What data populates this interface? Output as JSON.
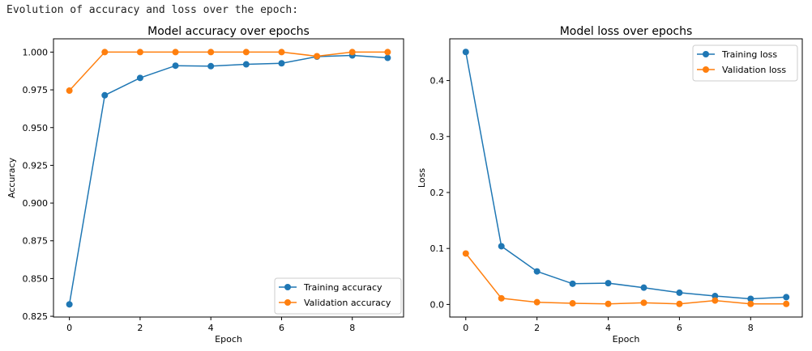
{
  "caption": "Evolution of accuracy and loss over the epoch:",
  "colors": {
    "training": "#1f77b4",
    "validation": "#ff7f0e"
  },
  "chart_data": [
    {
      "type": "line",
      "title": "Model accuracy over epochs",
      "xlabel": "Epoch",
      "ylabel": "Accuracy",
      "x": [
        0,
        1,
        2,
        3,
        4,
        5,
        6,
        7,
        8,
        9
      ],
      "xlim": [
        -0.45,
        9.45
      ],
      "ylim": [
        0.8245,
        1.0088
      ],
      "xticks": [
        0,
        2,
        4,
        6,
        8
      ],
      "xtick_labels": [
        "0",
        "2",
        "4",
        "6",
        "8"
      ],
      "yticks": [
        0.825,
        0.85,
        0.875,
        0.9,
        0.925,
        0.95,
        0.975,
        1.0
      ],
      "ytick_labels": [
        "0.825",
        "0.850",
        "0.875",
        "0.900",
        "0.925",
        "0.950",
        "0.975",
        "1.000"
      ],
      "legend_position": "lower-right",
      "series": [
        {
          "name": "Training accuracy",
          "values": [
            0.8329,
            0.9714,
            0.9829,
            0.991,
            0.9907,
            0.9919,
            0.9926,
            0.997,
            0.9978,
            0.9962
          ]
        },
        {
          "name": "Validation accuracy",
          "values": [
            0.9745,
            1.0,
            1.0,
            1.0,
            1.0,
            1.0,
            1.0,
            0.9973,
            1.0,
            1.0
          ]
        }
      ]
    },
    {
      "type": "line",
      "title": "Model loss over epochs",
      "xlabel": "Epoch",
      "ylabel": "Loss",
      "x": [
        0,
        1,
        2,
        3,
        4,
        5,
        6,
        7,
        8,
        9
      ],
      "xlim": [
        -0.45,
        9.45
      ],
      "ylim": [
        -0.0225,
        0.4745
      ],
      "xticks": [
        0,
        2,
        4,
        6,
        8
      ],
      "xtick_labels": [
        "0",
        "2",
        "4",
        "6",
        "8"
      ],
      "yticks": [
        0.0,
        0.1,
        0.2,
        0.3,
        0.4
      ],
      "ytick_labels": [
        "0.0",
        "0.1",
        "0.2",
        "0.3",
        "0.4"
      ],
      "legend_position": "upper-right",
      "series": [
        {
          "name": "Training loss",
          "values": [
            0.451,
            0.104,
            0.059,
            0.037,
            0.038,
            0.03,
            0.021,
            0.015,
            0.01,
            0.013
          ]
        },
        {
          "name": "Validation loss",
          "values": [
            0.091,
            0.011,
            0.004,
            0.002,
            0.001,
            0.003,
            0.001,
            0.007,
            0.001,
            0.001
          ]
        }
      ]
    }
  ]
}
